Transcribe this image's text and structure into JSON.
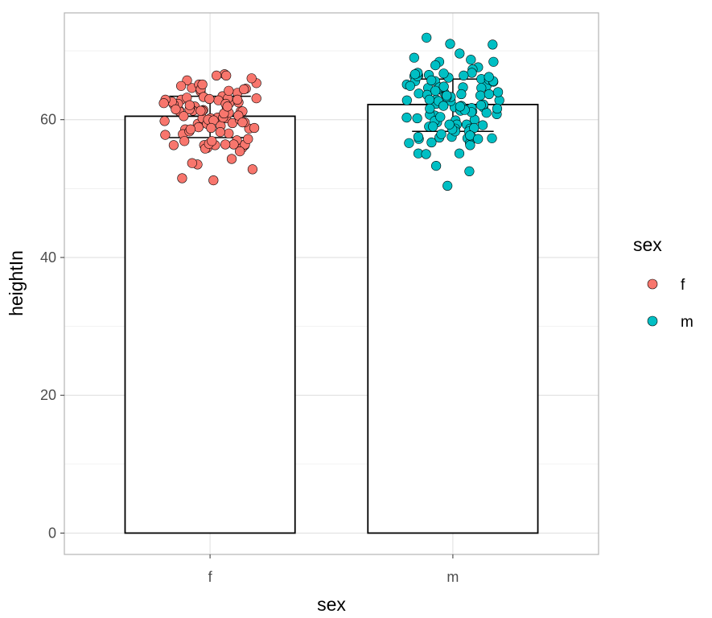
{
  "chart_data": {
    "type": "bar",
    "xlabel": "sex",
    "ylabel": "heightIn",
    "categories": [
      "f",
      "m"
    ],
    "values": [
      60.5,
      62.2
    ],
    "ylim": [
      -3.1,
      75.5
    ],
    "yticks": [
      0,
      20,
      40,
      60
    ],
    "grid": true,
    "error_bars": [
      {
        "category": "f",
        "low": 57.4,
        "high": 63.4
      },
      {
        "category": "m",
        "low": 58.3,
        "high": 65.9
      }
    ],
    "legend": {
      "title": "sex",
      "position": "right",
      "entries": [
        {
          "label": "f",
          "color": "#F8766D"
        },
        {
          "label": "m",
          "color": "#00BFC4"
        }
      ]
    },
    "points": [
      {
        "name": "f",
        "color": "#F8766D",
        "values": [
          66.6,
          64.6,
          63.4,
          65.3,
          61.8,
          60.2,
          61.3,
          64.5,
          62.4,
          61.2,
          59.5,
          61.9,
          63.9,
          62.9,
          60.3,
          58.6,
          57.9,
          57.0,
          56.3,
          55.9,
          56.3,
          55.9,
          54.3,
          53.5,
          58.3,
          59.4,
          58.7,
          59.6,
          60.2,
          61.4,
          60.0,
          61.2,
          62.3,
          61.3,
          58.9,
          60.2,
          58.8,
          59.4,
          56.4,
          56.9,
          56.3,
          56.4,
          55.4,
          53.7,
          51.2,
          61.2,
          61.0,
          62.2,
          62.8,
          62.6,
          63.1,
          64.1,
          64.2,
          65.7,
          65.1,
          64.4,
          65.1,
          66.0,
          63.3,
          62.9,
          63.2,
          61.5,
          62.3,
          62.4,
          61.8,
          61.5,
          61.3,
          60.5,
          60.6,
          60.0,
          59.9,
          59.6,
          59.1,
          58.0,
          57.8,
          56.3,
          55.8,
          58.8,
          56.4,
          58.6,
          56.5,
          52.8,
          51.5,
          56.9,
          57.2,
          58.2,
          59.8,
          60.3,
          60.9,
          61.3,
          62.5,
          61.9,
          62.1,
          62.9,
          63.1,
          63.0,
          64.9,
          66.4,
          66.4,
          64.4
        ]
      },
      {
        "name": "m",
        "color": "#00BFC4",
        "values": [
          69.6,
          68.7,
          69.0,
          68.4,
          66.3,
          66.5,
          66.1,
          65.9,
          65.6,
          64.9,
          64.6,
          64.6,
          63.9,
          63.5,
          62.8,
          62.9,
          61.2,
          61.8,
          63.5,
          62.8,
          62.0,
          61.0,
          60.6,
          60.3,
          60.7,
          59.9,
          59.3,
          58.7,
          58.3,
          57.5,
          57.3,
          57.3,
          56.6,
          55.1,
          55.1,
          55.0,
          52.5,
          50.4,
          53.3,
          56.3,
          57.4,
          57.9,
          59.0,
          59.6,
          60.2,
          59.3,
          60.8,
          61.7,
          61.8,
          62.2,
          62.1,
          62.3,
          62.7,
          63.3,
          63.8,
          63.7,
          64.4,
          65.1,
          64.7,
          64.7,
          65.6,
          66.4,
          66.3,
          66.8,
          67.6,
          67.3,
          66.8,
          68.4,
          71.9,
          71.0,
          70.9,
          67.9,
          66.6,
          65.8,
          64.7,
          64.0,
          63.6,
          62.9,
          61.3,
          61.6,
          61.6,
          60.0,
          59.8,
          59.2,
          59.0,
          58.7,
          58.8,
          58.3,
          57.6,
          57.7,
          56.7,
          57.2,
          57.2,
          56.6,
          57.5,
          58.6,
          59.3,
          60.4,
          61.1,
          61.4,
          61.9,
          62.7,
          63.3,
          63.5,
          63.7,
          64.2,
          65.5,
          65.6,
          66.4,
          66.7,
          66.2,
          65.7,
          64.9,
          64.8,
          62.0
        ]
      }
    ]
  }
}
